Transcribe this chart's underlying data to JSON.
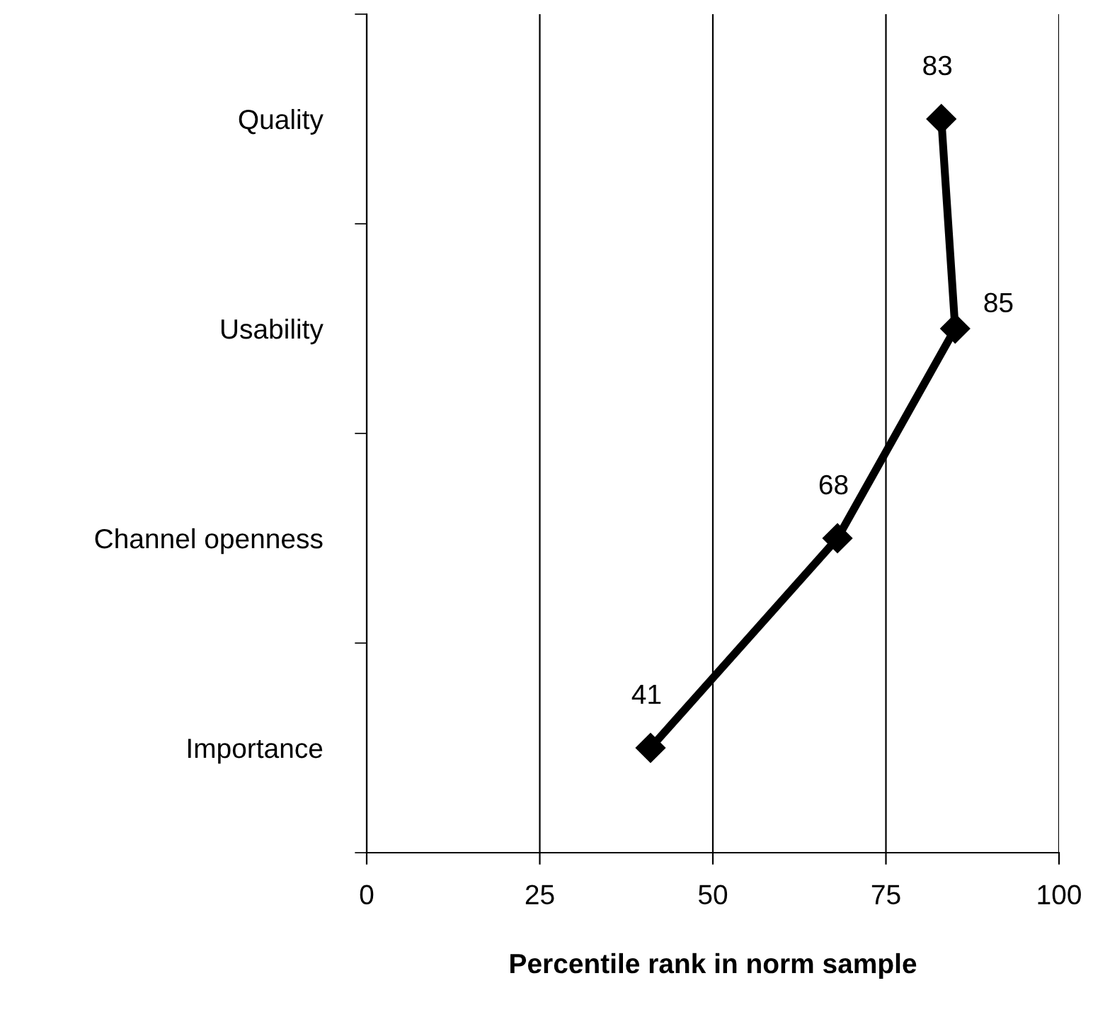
{
  "chart_data": {
    "type": "line",
    "orientation": "horizontal",
    "xlabel": "Percentile rank in norm sample",
    "categories": [
      "Quality",
      "Usability",
      "Channel openness",
      "Importance"
    ],
    "series": [
      {
        "color": "#000000",
        "values": [
          83,
          85,
          68,
          41
        ]
      }
    ],
    "xlim": [
      0,
      100
    ],
    "xticks": [
      0,
      25,
      50,
      75,
      100
    ],
    "grid": "x",
    "marker": "diamond",
    "line_style": "solid",
    "data_labels": true,
    "legend": false
  }
}
